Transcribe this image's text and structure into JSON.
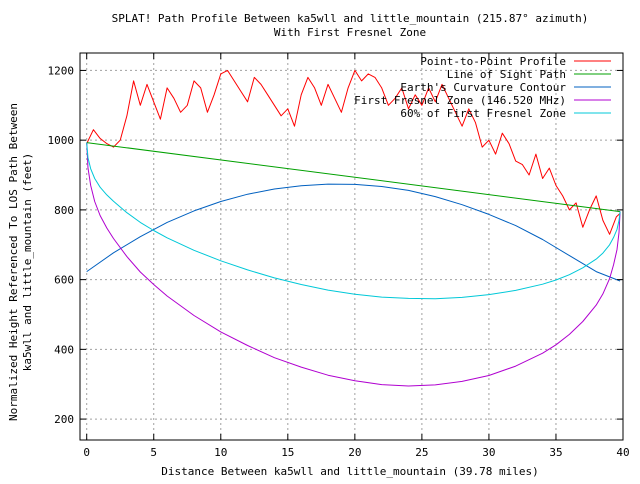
{
  "chart_data": {
    "type": "line",
    "title": "SPLAT! Path Profile Between ka5wll and little_mountain (215.87° azimuth)",
    "subtitle": "With First Fresnel Zone",
    "xlabel": "Distance Between ka5wll and little_mountain (39.78 miles)",
    "ylabel_line1": "Normalized Height Referenced To LOS Path Between",
    "ylabel_line2": "ka5wll and little_mountain (feet)",
    "xlim": [
      -0.5,
      40
    ],
    "ylim": [
      140,
      1250
    ],
    "x_ticks": [
      0,
      5,
      10,
      15,
      20,
      25,
      30,
      35,
      40
    ],
    "x_tick_labels": [
      "0",
      "5",
      "10",
      "15",
      "20",
      "25",
      "30",
      "35",
      "40"
    ],
    "y_ticks": [
      200,
      400,
      600,
      800,
      1000,
      1200
    ],
    "y_tick_labels": [
      "200",
      "400",
      "600",
      "800",
      "1000",
      "1200"
    ],
    "grid": true,
    "legend_position": "top-right",
    "series": [
      {
        "name": "Point-to-Point Profile",
        "color": "#ff0000",
        "x": [
          0,
          0.5,
          1,
          1.5,
          2,
          2.5,
          3,
          3.5,
          4,
          4.5,
          5,
          5.5,
          6,
          6.5,
          7,
          7.5,
          8,
          8.5,
          9,
          9.5,
          10,
          10.5,
          11,
          11.5,
          12,
          12.5,
          13,
          13.5,
          14,
          14.5,
          15,
          15.5,
          16,
          16.5,
          17,
          17.5,
          18,
          18.5,
          19,
          19.5,
          20,
          20.5,
          21,
          21.5,
          22,
          22.5,
          23,
          23.5,
          24,
          24.5,
          25,
          25.5,
          26,
          26.5,
          27,
          27.5,
          28,
          28.5,
          29,
          29.5,
          30,
          30.5,
          31,
          31.5,
          32,
          32.5,
          33,
          33.5,
          34,
          34.5,
          35,
          35.5,
          36,
          36.5,
          37,
          37.5,
          38,
          38.5,
          39,
          39.5,
          39.78
        ],
        "y": [
          990,
          1030,
          1005,
          990,
          980,
          1000,
          1070,
          1170,
          1100,
          1160,
          1110,
          1060,
          1150,
          1120,
          1080,
          1100,
          1170,
          1150,
          1080,
          1130,
          1190,
          1200,
          1170,
          1140,
          1110,
          1180,
          1160,
          1130,
          1100,
          1070,
          1090,
          1040,
          1130,
          1180,
          1150,
          1100,
          1160,
          1120,
          1080,
          1150,
          1200,
          1170,
          1190,
          1180,
          1150,
          1100,
          1120,
          1150,
          1090,
          1130,
          1100,
          1150,
          1110,
          1160,
          1120,
          1080,
          1040,
          1090,
          1050,
          980,
          1000,
          960,
          1020,
          990,
          940,
          930,
          900,
          960,
          890,
          920,
          870,
          840,
          800,
          820,
          750,
          800,
          840,
          770,
          730,
          780,
          790
        ]
      },
      {
        "name": "Line of Sight Path",
        "color": "#00a000",
        "x": [
          0,
          39.78
        ],
        "y": [
          993,
          795
        ]
      },
      {
        "name": "Earth's Curvature Contour",
        "color": "#0060c0",
        "x": [
          0,
          2,
          4,
          6,
          8,
          10,
          12,
          14,
          16,
          18,
          20,
          22,
          24,
          26,
          28,
          30,
          32,
          34,
          36,
          38,
          39.78
        ],
        "y": [
          623,
          677,
          723,
          764,
          797,
          824,
          845,
          860,
          869,
          874,
          873,
          867,
          856,
          838,
          815,
          787,
          755,
          715,
          669,
          623,
          596
        ]
      },
      {
        "name": "First Fresnel Zone (146.520 MHz)",
        "color": "#b000d0",
        "x": [
          0,
          0.1,
          0.3,
          0.6,
          1,
          1.5,
          2,
          3,
          4,
          5,
          6,
          8,
          10,
          12,
          14,
          16,
          18,
          20,
          22,
          24,
          26,
          28,
          30,
          32,
          34,
          35,
          36,
          37,
          38,
          38.5,
          39,
          39.3,
          39.55,
          39.7,
          39.78
        ],
        "y": [
          993,
          920,
          870,
          824,
          784,
          748,
          718,
          666,
          622,
          586,
          553,
          497,
          450,
          411,
          376,
          349,
          326,
          310,
          299,
          295,
          298,
          308,
          325,
          352,
          389,
          413,
          443,
          480,
          527,
          559,
          603,
          643,
          686,
          735,
          795
        ]
      },
      {
        "name": "60% of First Fresnel Zone",
        "color": "#00c8d8",
        "x": [
          0,
          0.1,
          0.3,
          0.6,
          1,
          1.5,
          2,
          3,
          4,
          5,
          6,
          8,
          10,
          12,
          14,
          16,
          18,
          20,
          22,
          24,
          26,
          28,
          30,
          32,
          34,
          35,
          36,
          37,
          38,
          38.5,
          39,
          39.3,
          39.55,
          39.7,
          39.78
        ],
        "y": [
          993,
          949,
          918,
          890,
          865,
          843,
          825,
          792,
          764,
          741,
          720,
          684,
          654,
          628,
          605,
          586,
          570,
          558,
          550,
          546,
          545,
          549,
          557,
          569,
          587,
          599,
          614,
          634,
          659,
          676,
          700,
          721,
          744,
          770,
          795
        ]
      }
    ]
  }
}
